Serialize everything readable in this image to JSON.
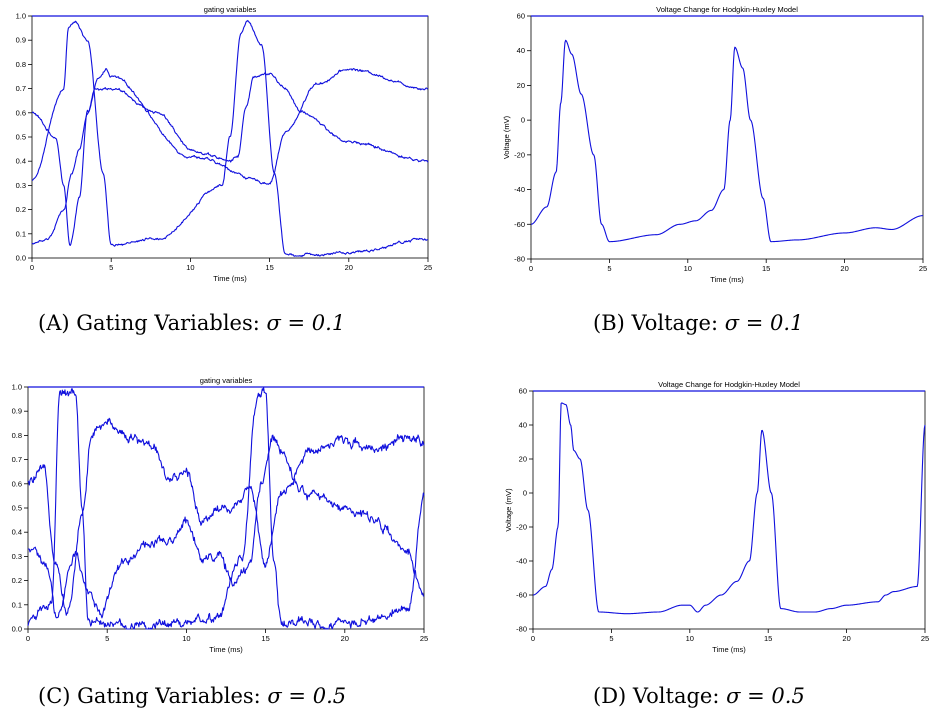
{
  "colors": {
    "line": "#1010dd",
    "axis": "#000000",
    "background": "#ffffff"
  },
  "captions": [
    {
      "label": "(A)",
      "text": "Gating Variables:",
      "sigma": "σ = 0.1"
    },
    {
      "label": "(B)",
      "text": "Voltage:",
      "sigma": "σ = 0.1"
    },
    {
      "label": "(C)",
      "text": "Gating Variables:",
      "sigma": "σ = 0.5"
    },
    {
      "label": "(D)",
      "text": "Voltage:",
      "sigma": "σ = 0.5"
    }
  ],
  "chart_data": [
    {
      "type": "line",
      "title": "gating variables",
      "xlabel": "Time (ms)",
      "ylabel": "",
      "xlim": [
        0,
        25
      ],
      "ylim": [
        0,
        1
      ],
      "xticks": [
        "0",
        "5",
        "10",
        "15",
        "20",
        "25"
      ],
      "yticks": [
        "0.0",
        "0.1",
        "0.2",
        "0.3",
        "0.4",
        "0.5",
        "0.6",
        "0.7",
        "0.8",
        "0.9",
        "1.0"
      ],
      "legend": "none",
      "grid": false,
      "noise": 0.004,
      "series": [
        {
          "x": [
            0,
            1.5,
            2.0,
            2.4,
            3.0,
            3.5,
            4.2,
            4.7,
            5.0,
            10,
            15,
            16,
            18,
            20,
            25
          ],
          "values": [
            0.6,
            0.5,
            0.3,
            0.05,
            0.25,
            0.6,
            0.74,
            0.78,
            0.75,
            0.42,
            0.31,
            0.52,
            0.72,
            0.78,
            0.7
          ]
        },
        {
          "x": [
            0,
            1.0,
            2.0,
            2.5,
            3.0,
            3.5,
            4.0,
            5.0,
            8.0,
            10,
            11,
            12.5,
            13.0,
            13.5,
            14,
            15,
            16,
            17,
            20,
            25
          ],
          "values": [
            0.06,
            0.08,
            0.2,
            0.35,
            0.45,
            0.6,
            0.7,
            0.7,
            0.6,
            0.45,
            0.43,
            0.4,
            0.42,
            0.62,
            0.75,
            0.76,
            0.7,
            0.6,
            0.48,
            0.4
          ]
        },
        {
          "x": [
            0,
            2.0,
            2.3,
            2.7,
            3.5,
            4.5,
            5.0,
            8.0,
            12,
            12.5,
            13.2,
            13.6,
            14.5,
            15.3,
            16.0,
            20,
            25
          ],
          "values": [
            0.32,
            0.7,
            0.95,
            0.98,
            0.9,
            0.35,
            0.05,
            0.08,
            0.3,
            0.5,
            0.93,
            0.98,
            0.88,
            0.35,
            0.01,
            0.02,
            0.08
          ]
        }
      ]
    },
    {
      "type": "line",
      "title": "Voltage Change for Hodgkin-Huxley Model",
      "xlabel": "Time (ms)",
      "ylabel": "Voltage (mV)",
      "xlim": [
        0,
        25
      ],
      "ylim": [
        -80,
        60
      ],
      "xticks": [
        "0",
        "5",
        "10",
        "15",
        "20",
        "25"
      ],
      "yticks": [
        "-80",
        "-60",
        "-40",
        "-20",
        "0",
        "20",
        "40",
        "60"
      ],
      "legend": "none",
      "grid": false,
      "noise": 0,
      "series": [
        {
          "x": [
            0,
            1.0,
            1.6,
            1.9,
            2.2,
            2.6,
            3.2,
            4.0,
            4.5,
            5.0,
            8.0,
            9.5,
            10.5,
            11.5,
            12.3,
            12.7,
            13.0,
            13.5,
            14.0,
            14.8,
            15.3,
            17,
            20,
            22,
            23,
            25
          ],
          "values": [
            -60,
            -50,
            -30,
            10,
            46,
            38,
            15,
            -20,
            -60,
            -70,
            -66,
            -60,
            -58,
            -52,
            -40,
            0,
            42,
            30,
            0,
            -45,
            -70,
            -69,
            -65,
            -62,
            -63,
            -55
          ]
        }
      ]
    },
    {
      "type": "line",
      "title": "gating variables",
      "xlabel": "Time (ms)",
      "ylabel": "",
      "xlim": [
        0,
        25
      ],
      "ylim": [
        0,
        1
      ],
      "xticks": [
        "0",
        "5",
        "10",
        "15",
        "20",
        "25"
      ],
      "yticks": [
        "0.0",
        "0.1",
        "0.2",
        "0.3",
        "0.4",
        "0.5",
        "0.6",
        "0.7",
        "0.8",
        "0.9",
        "1.0"
      ],
      "legend": "none",
      "grid": false,
      "noise": 0.015,
      "series": [
        {
          "x": [
            0,
            1.0,
            1.7,
            2.5,
            3.5,
            4.0,
            5.0,
            7.0,
            8.0,
            9.0,
            10,
            11,
            12,
            13,
            14,
            15,
            16,
            18,
            20,
            22,
            24,
            25
          ],
          "values": [
            0.6,
            0.65,
            0.3,
            0.07,
            0.5,
            0.8,
            0.85,
            0.78,
            0.75,
            0.6,
            0.65,
            0.45,
            0.5,
            0.5,
            0.6,
            0.27,
            0.55,
            0.75,
            0.78,
            0.75,
            0.78,
            0.78
          ]
        },
        {
          "x": [
            0,
            1.2,
            1.8,
            3.0,
            3.8,
            4.5,
            6.0,
            7.5,
            9.0,
            10,
            11,
            12,
            13,
            14,
            14.7,
            15.5,
            16,
            17,
            18,
            20,
            22,
            24,
            25
          ],
          "values": [
            0.33,
            0.25,
            0.05,
            0.3,
            0.15,
            0.07,
            0.28,
            0.35,
            0.35,
            0.45,
            0.3,
            0.3,
            0.2,
            0.25,
            0.6,
            0.8,
            0.75,
            0.6,
            0.55,
            0.5,
            0.45,
            0.3,
            0.15
          ]
        },
        {
          "x": [
            0,
            1.5,
            2.0,
            3.0,
            3.4,
            3.8,
            5.0,
            8.0,
            10,
            12,
            13.5,
            14.5,
            15.0,
            15.5,
            16,
            20,
            24,
            25
          ],
          "values": [
            0.03,
            0.1,
            0.98,
            0.97,
            0.5,
            0.05,
            0.01,
            0.02,
            0.03,
            0.05,
            0.3,
            0.95,
            0.98,
            0.3,
            0.02,
            0.02,
            0.08,
            0.55
          ]
        }
      ]
    },
    {
      "type": "line",
      "title": "Voltage Change for Hodgkin-Huxley Model",
      "xlabel": "Time (ms)",
      "ylabel": "Voltage (mV)",
      "xlim": [
        0,
        25
      ],
      "ylim": [
        -80,
        60
      ],
      "xticks": [
        "0",
        "5",
        "10",
        "15",
        "20",
        "25"
      ],
      "yticks": [
        "-80",
        "-60",
        "-40",
        "-20",
        "0",
        "20",
        "40",
        "60"
      ],
      "legend": "none",
      "grid": false,
      "noise": 0,
      "series": [
        {
          "x": [
            0,
            0.8,
            1.2,
            1.6,
            1.8,
            2.1,
            2.4,
            2.6,
            3.0,
            3.5,
            4.2,
            6.0,
            8.0,
            9.5,
            10.0,
            10.5,
            11.0,
            12.0,
            13.0,
            13.8,
            14.3,
            14.6,
            15.2,
            15.8,
            17,
            18,
            19,
            20,
            22,
            22.5,
            23,
            24.5,
            25
          ],
          "values": [
            -60,
            -55,
            -45,
            -20,
            53,
            52,
            40,
            25,
            20,
            -10,
            -70,
            -71,
            -70,
            -66,
            -66,
            -70,
            -66,
            -60,
            -52,
            -40,
            0,
            37,
            0,
            -68,
            -70,
            -70,
            -68,
            -66,
            -64,
            -60,
            -58,
            -55,
            40
          ]
        }
      ]
    }
  ]
}
